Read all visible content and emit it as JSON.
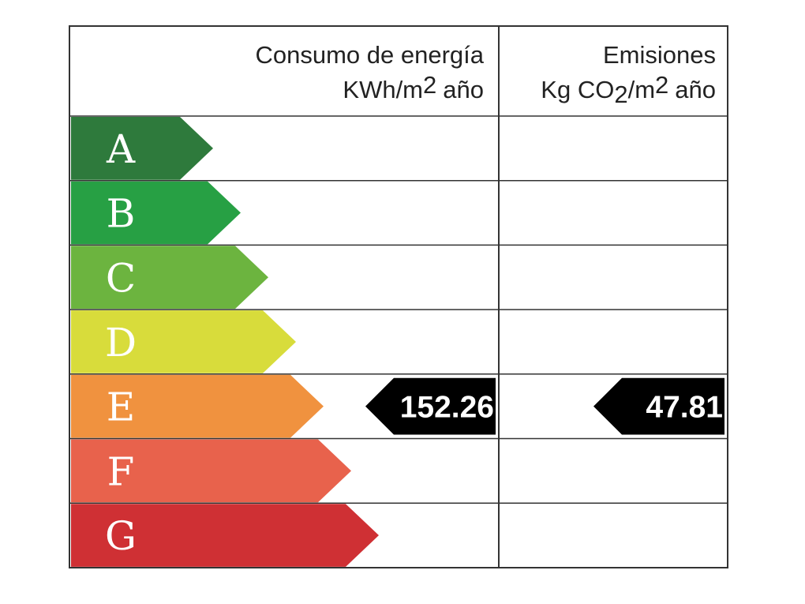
{
  "header": {
    "energy": {
      "title": "Consumo de energía",
      "unit": [
        "KWh/m",
        "2",
        "año"
      ]
    },
    "emissions": {
      "title": "Emisiones",
      "unit": [
        "Kg CO",
        "2",
        "/m",
        "2",
        "año"
      ]
    }
  },
  "ratings": [
    {
      "letter": "A",
      "color": "#2e7a3c"
    },
    {
      "letter": "B",
      "color": "#27a044"
    },
    {
      "letter": "C",
      "color": "#6cb43f"
    },
    {
      "letter": "D",
      "color": "#d8dc3b"
    },
    {
      "letter": "E",
      "color": "#f0923f"
    },
    {
      "letter": "F",
      "color": "#e8624c"
    },
    {
      "letter": "G",
      "color": "#cf3034"
    }
  ],
  "energy": {
    "value": 152.26,
    "rating": "E"
  },
  "emissions": {
    "value": 47.81,
    "rating": "E"
  }
}
